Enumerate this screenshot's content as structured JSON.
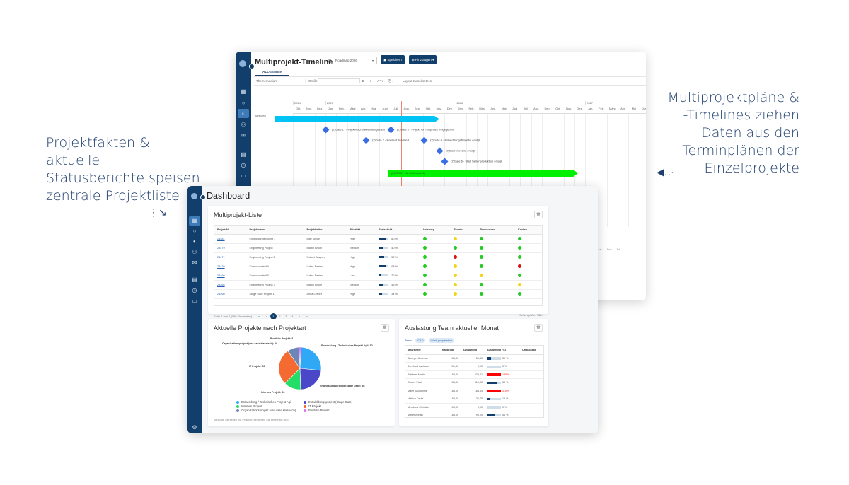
{
  "captions": {
    "left": "Projektfakten & aktuelle Statusberichte speisen zentrale Projektliste",
    "right": "Multiprojektpläne & -Timelines ziehen Daten aus den Terminplänen der Einzelprojekte"
  },
  "timeline": {
    "title": "Multiprojekt-Timeline",
    "tab": "ALLGEMEIN",
    "roadmap_select": "Roadmap 2026",
    "save_label": "Speichern",
    "add_label": "Hinzufügen",
    "toolbar": {
      "theme_label": "Theme",
      "theme_value": "medium",
      "size_label": "Größe",
      "size_value": "",
      "bold": "B",
      "italic": "I",
      "reset_label": "Layout zurücksetzen"
    },
    "years": [
      "2024",
      "2025",
      "2026",
      "2027"
    ],
    "months": [
      "Okt.",
      "Nov.",
      "Dez.",
      "Jan.",
      "Feb.",
      "März",
      "Apr.",
      "Mai",
      "Juni",
      "Juli",
      "Aug.",
      "Sep.",
      "Okt.",
      "Nov.",
      "Dez.",
      "Jan.",
      "Feb.",
      "März",
      "Apr.",
      "Mai",
      "Juni",
      "Juli",
      "Aug.",
      "Sep.",
      "Okt.",
      "Nov.",
      "Dez.",
      "Jan.",
      "Feb.",
      "März",
      "Apr.",
      "Mai",
      "Juni",
      "Juli"
    ],
    "row_label": "Motoren",
    "milestones": [
      "(2)Gate 1 - Projektmachbarkeit festgestellt",
      "(2)Gate 3 - Projekt für Testphase freigegeben",
      "(2)Gate 2 - Konzept finalisiert",
      "(2)Gate 4 - Entwicklungsfreigabe erfolgt",
      "(2)Start Vorserie erfolgt",
      "(2)Gate 6 - Start Serienproduktion erfolgt"
    ],
    "green_bar_label": "(2)23-007 - Antrieb ausc(1)"
  },
  "dashboard": {
    "title": "Dashboard",
    "project_list": {
      "title": "Multiprojekt-Liste",
      "columns": [
        "ProjektNr",
        "Projektname",
        "Projektleiter",
        "Priorität",
        "Fortschritt",
        "Leistung",
        "Termin",
        "Ressourcen",
        "Kosten"
      ],
      "rows": [
        {
          "id": "24481",
          "name": "Entwicklungsprojekt 1",
          "lead": "May Stefan",
          "prio": "High",
          "progress": 80,
          "progress_label": "80 %",
          "status": [
            "green",
            "yellow",
            "green",
            "green"
          ]
        },
        {
          "id": "24479",
          "name": "Engineering Project",
          "lead": "Martin Bruch",
          "prio": "Medium",
          "progress": 40,
          "progress_label": "40 %",
          "status": [
            "green",
            "green",
            "green",
            "green"
          ]
        },
        {
          "id": "24471",
          "name": "Engineering Project 2",
          "lead": "Robert Wagner",
          "prio": "High",
          "progress": 52,
          "progress_label": "52 %",
          "status": [
            "green",
            "red",
            "green",
            "green"
          ]
        },
        {
          "id": "24470",
          "name": "Komponente XY",
          "lead": "Lukas Rester",
          "prio": "High",
          "progress": 68,
          "progress_label": "68 %",
          "status": [
            "green",
            "yellow",
            "green",
            "red"
          ]
        },
        {
          "id": "24460",
          "name": "Komponente AB",
          "lead": "Lukas Rester",
          "prio": "Low",
          "progress": 22,
          "progress_label": "22 %",
          "status": [
            "green",
            "yellow",
            "yellow",
            "green"
          ]
        },
        {
          "id": "24466",
          "name": "Engineering Project 3",
          "lead": "Martin Bruch",
          "prio": "Medium",
          "progress": 45,
          "progress_label": "45 %",
          "status": [
            "green",
            "yellow",
            "green",
            "yellow"
          ]
        },
        {
          "id": "24460",
          "name": "Stage Gate Project 1",
          "lead": "Anna Leitner",
          "prio": "High",
          "progress": 34,
          "progress_label": "34 %",
          "status": [
            "green",
            "yellow",
            "green",
            "green"
          ]
        }
      ],
      "pager_text": "Seite 1 von 4 (190 Elementen)",
      "pages": [
        "1",
        "2",
        "3",
        "4"
      ],
      "page_size_label": "Seitengröße:",
      "page_size": "50"
    },
    "pie_card": {
      "title": "Aktuelle Projekte nach Projektart",
      "note": "Achtung: Sie sehen nur Projekte, bei denen Sie berechtigt sind"
    },
    "team_card": {
      "title": "Auslastung Team aktueller Monat",
      "team_label": "Team:",
      "chips": [
        "CAD",
        "Work preparation"
      ],
      "columns": [
        "Mitarbeiter",
        "Kapazität",
        "Auslastung",
        "Auslastung (%)",
        "Urlaubstag"
      ],
      "rows": [
        {
          "name": "Alberger Andreas",
          "cap": "168,00",
          "load": "50,40",
          "pct": 30,
          "pct_label": "30 %",
          "over": false
        },
        {
          "name": "Bernhard Aschauer",
          "cap": "201,60",
          "load": "0,00",
          "pct": 0,
          "pct_label": "0 %",
          "over": false
        },
        {
          "name": "Pointner Martin",
          "cap": "168,00",
          "load": "328,31",
          "pct": 195,
          "pct_label": "195 %",
          "over": true
        },
        {
          "name": "Gruber Paul",
          "cap": "168,00",
          "load": "113,83",
          "pct": 68,
          "pct_label": "68 %",
          "over": false
        },
        {
          "name": "Maier Jacqueline",
          "cap": "168,00",
          "load": "184,34",
          "pct": 110,
          "pct_label": "110 %",
          "over": true
        },
        {
          "name": "Mairich David",
          "cap": "168,00",
          "load": "32,75",
          "pct": 19,
          "pct_label": "19 %",
          "over": false
        },
        {
          "name": "Mendoza Christian",
          "cap": "105,00",
          "load": "0,00",
          "pct": 0,
          "pct_label": "0 %",
          "over": false
        },
        {
          "name": "Moser Adrian",
          "cap": "168,00",
          "load": "90,00",
          "pct": 54,
          "pct_label": "54 %",
          "over": false
        }
      ]
    }
  },
  "chart_data": {
    "type": "pie",
    "title": "Aktuelle Projekte nach Projektart",
    "categories": [
      "Entwicklung / Technisches Projekt Agil",
      "Entwicklungsprojekt (Stage Gate)",
      "Internes Projekt",
      "IT Projekt",
      "Organisationsprojekt (use case klassisch)",
      "Portfolio Projekt"
    ],
    "values": [
      52,
      46,
      26,
      56,
      18,
      3
    ],
    "colors": [
      "#2fa8f5",
      "#4a48c8",
      "#22dd66",
      "#f56a30",
      "#6a87b8",
      "#e070f0"
    ],
    "legend_position": "bottom"
  }
}
